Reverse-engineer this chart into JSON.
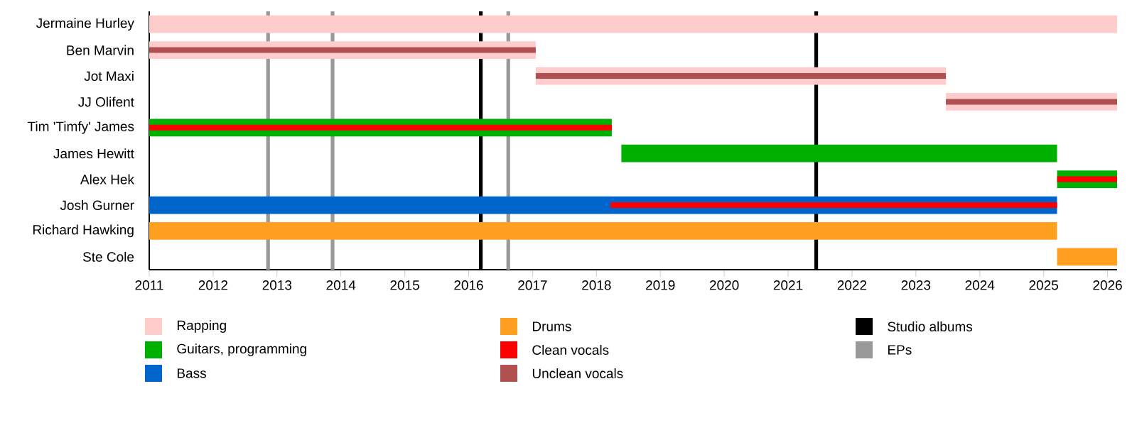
{
  "chart_data": {
    "type": "bar",
    "orientation": "horizontal",
    "categories": [
      "Jermaine Hurley",
      "Ben Marvin",
      "Jot Maxi",
      "JJ Olifent",
      "Tim 'Timfy' James",
      "James Hewitt",
      "Alex Hek",
      "Josh Gurner",
      "Richard Hawking",
      "Ste Cole"
    ],
    "series": [
      {
        "name": "Rapping",
        "color": "#ffcccc",
        "base": [
          2011,
          2011,
          2017.05,
          2023.47,
          null,
          null,
          null,
          null,
          null,
          null
        ],
        "values": [
          15.15,
          6.05,
          6.42,
          2.68,
          null,
          null,
          null,
          null,
          null,
          null
        ]
      },
      {
        "name": "Guitars, programming",
        "color": "#00b000",
        "base": [
          null,
          null,
          null,
          null,
          2011,
          2018.39,
          2025.21,
          null,
          null,
          null
        ],
        "values": [
          null,
          null,
          null,
          null,
          7.24,
          6.82,
          0.94,
          null,
          null,
          null
        ]
      },
      {
        "name": "Bass",
        "color": "#0066cc",
        "base": [
          null,
          null,
          null,
          null,
          null,
          null,
          null,
          2011,
          null,
          null
        ],
        "values": [
          null,
          null,
          null,
          null,
          null,
          null,
          null,
          14.21,
          null,
          null
        ]
      },
      {
        "name": "Drums",
        "color": "#ffa020",
        "base": [
          null,
          null,
          null,
          null,
          null,
          null,
          null,
          null,
          2011,
          2025.21
        ],
        "values": [
          null,
          null,
          null,
          null,
          null,
          null,
          null,
          null,
          14.21,
          0.94
        ]
      },
      {
        "name": "Clean vocals",
        "color": "#ff0000",
        "base": [
          null,
          null,
          null,
          null,
          2011,
          null,
          2025.21,
          2018.22,
          null,
          null
        ],
        "values": [
          null,
          null,
          null,
          null,
          7.24,
          null,
          0.94,
          6.99,
          null,
          null
        ]
      },
      {
        "name": "Unclean vocals",
        "color": "#b05050",
        "base": [
          null,
          2011,
          2017.05,
          2023.47,
          null,
          null,
          null,
          null,
          null,
          null
        ],
        "values": [
          null,
          6.05,
          6.42,
          2.68,
          null,
          null,
          null,
          null,
          null,
          null
        ]
      }
    ],
    "xlim": [
      2011,
      2026.15
    ],
    "xticks": [
      2011,
      2012,
      2013,
      2014,
      2015,
      2016,
      2017,
      2018,
      2019,
      2020,
      2021,
      2022,
      2023,
      2024,
      2025,
      2026
    ],
    "ref_lines": [
      {
        "axis": "x",
        "value": 2016.19,
        "label": "Studio albums",
        "color": "#000000"
      },
      {
        "axis": "x",
        "value": 2021.44,
        "color": "#000000"
      },
      {
        "axis": "x",
        "value": 2012.86,
        "label": "EPs",
        "color": "#999999"
      },
      {
        "axis": "x",
        "value": 2013.87,
        "color": "#999999"
      },
      {
        "axis": "x",
        "value": 2016.62,
        "color": "#999999"
      }
    ],
    "legend": "bottom"
  }
}
